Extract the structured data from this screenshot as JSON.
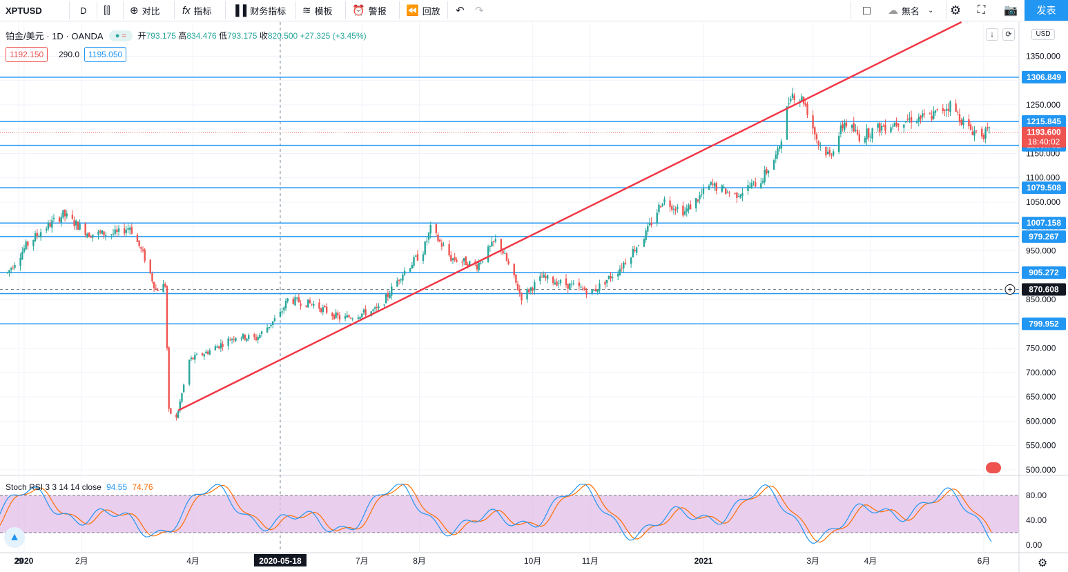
{
  "toolbar": {
    "symbol": "XPTUSD",
    "interval": "D",
    "compare": "对比",
    "indicators": "指标",
    "financials": "财务指标",
    "templates": "模板",
    "alert": "警报",
    "replay": "回放",
    "layout_name": "無名",
    "publish": "发表"
  },
  "legend": {
    "title": "铂金/美元 · 1D · OANDA",
    "open_label": "开",
    "open": "793.175",
    "high_label": "高",
    "high": "834.476",
    "low_label": "低",
    "low": "793.175",
    "close_label": "收",
    "close": "820.500",
    "change": "+27.325 (+3.45%)",
    "bid": "1192.150",
    "spread": "290.0",
    "ask": "1195.050"
  },
  "currency": "USD",
  "oscillator": {
    "name": "Stoch RSI 3 3 14 14 close",
    "k_value": "94.55",
    "d_value": "74.76",
    "ticks": [
      "80.00",
      "40.00",
      "0.00"
    ]
  },
  "chart_data": {
    "type": "candlestick",
    "symbol": "XPTUSD",
    "timeframe": "1D",
    "y_range": [
      490,
      1420
    ],
    "y_ticks": [
      1350,
      1300,
      1250,
      1200,
      1150,
      1100,
      1050,
      1000,
      950,
      900,
      850,
      800,
      750,
      700,
      650,
      600,
      550,
      500
    ],
    "y_tick_labels": [
      "1350.000",
      "1300.000",
      "1250.000",
      "1200.000",
      "1150.000",
      "1100.000",
      "1050.000",
      "1000.000",
      "950.000",
      "900.000",
      "850.000",
      "800.000",
      "750.000",
      "700.000",
      "650.000",
      "600.000",
      "550.000",
      "500.000"
    ],
    "x_labels": [
      {
        "label": "29",
        "date": "2019-12-29"
      },
      {
        "label": "2020",
        "date": "2020-01-01"
      },
      {
        "label": "2月",
        "date": "2020-02-01"
      },
      {
        "label": "4月",
        "date": "2020-04-01"
      },
      {
        "label": "2020-05-18",
        "date": "2020-05-18"
      },
      {
        "label": "7月",
        "date": "2020-07-01"
      },
      {
        "label": "8月",
        "date": "2020-08-01"
      },
      {
        "label": "10月",
        "date": "2020-10-01"
      },
      {
        "label": "11月",
        "date": "2020-11-01"
      },
      {
        "label": "2021",
        "date": "2021-01-01"
      },
      {
        "label": "3月",
        "date": "2021-03-01"
      },
      {
        "label": "4月",
        "date": "2021-04-01"
      },
      {
        "label": "6月",
        "date": "2021-06-01"
      }
    ],
    "crosshair_date": "2020-05-18",
    "horizontal_levels": [
      1306.849,
      1215.845,
      1166.731,
      1079.508,
      1007.158,
      979.267,
      905.272,
      870.608,
      799.952
    ],
    "cursor_price": "870.608",
    "current_price": "1193.600",
    "countdown": "18:40:02",
    "trendline": {
      "from": {
        "date": "2020-03-24",
        "price": 622
      },
      "to": {
        "date": "2021-05-20",
        "price": 1420
      }
    },
    "price_anchors": [
      {
        "date": "2019-12-23",
        "price": 905
      },
      {
        "date": "2020-01-02",
        "price": 960
      },
      {
        "date": "2020-01-10",
        "price": 990
      },
      {
        "date": "2020-01-22",
        "price": 1025
      },
      {
        "date": "2020-02-05",
        "price": 985
      },
      {
        "date": "2020-02-20",
        "price": 985
      },
      {
        "date": "2020-02-27",
        "price": 1000
      },
      {
        "date": "2020-03-06",
        "price": 935
      },
      {
        "date": "2020-03-12",
        "price": 870
      },
      {
        "date": "2020-03-17",
        "price": 880
      },
      {
        "date": "2020-03-19",
        "price": 620
      },
      {
        "date": "2020-03-23",
        "price": 605
      },
      {
        "date": "2020-03-30",
        "price": 725
      },
      {
        "date": "2020-04-10",
        "price": 745
      },
      {
        "date": "2020-04-24",
        "price": 775
      },
      {
        "date": "2020-05-05",
        "price": 770
      },
      {
        "date": "2020-05-18",
        "price": 820
      },
      {
        "date": "2020-05-22",
        "price": 850
      },
      {
        "date": "2020-06-05",
        "price": 840
      },
      {
        "date": "2020-06-20",
        "price": 810
      },
      {
        "date": "2020-07-10",
        "price": 830
      },
      {
        "date": "2020-07-22",
        "price": 900
      },
      {
        "date": "2020-08-03",
        "price": 950
      },
      {
        "date": "2020-08-07",
        "price": 995
      },
      {
        "date": "2020-08-18",
        "price": 935
      },
      {
        "date": "2020-09-01",
        "price": 920
      },
      {
        "date": "2020-09-12",
        "price": 975
      },
      {
        "date": "2020-09-25",
        "price": 855
      },
      {
        "date": "2020-10-06",
        "price": 895
      },
      {
        "date": "2020-10-20",
        "price": 880
      },
      {
        "date": "2020-11-02",
        "price": 865
      },
      {
        "date": "2020-11-16",
        "price": 910
      },
      {
        "date": "2020-12-01",
        "price": 985
      },
      {
        "date": "2020-12-10",
        "price": 1055
      },
      {
        "date": "2020-12-22",
        "price": 1030
      },
      {
        "date": "2021-01-05",
        "price": 1085
      },
      {
        "date": "2021-01-18",
        "price": 1065
      },
      {
        "date": "2021-02-01",
        "price": 1095
      },
      {
        "date": "2021-02-10",
        "price": 1150
      },
      {
        "date": "2021-02-17",
        "price": 1275
      },
      {
        "date": "2021-02-24",
        "price": 1260
      },
      {
        "date": "2021-03-04",
        "price": 1170
      },
      {
        "date": "2021-03-10",
        "price": 1145
      },
      {
        "date": "2021-03-18",
        "price": 1215
      },
      {
        "date": "2021-03-26",
        "price": 1185
      },
      {
        "date": "2021-04-07",
        "price": 1205
      },
      {
        "date": "2021-04-20",
        "price": 1220
      },
      {
        "date": "2021-05-03",
        "price": 1225
      },
      {
        "date": "2021-05-14",
        "price": 1250
      },
      {
        "date": "2021-05-24",
        "price": 1200
      },
      {
        "date": "2021-06-01",
        "price": 1190
      },
      {
        "date": "2021-06-04",
        "price": 1193.6
      }
    ],
    "stoch_rsi": {
      "k_last": 94.55,
      "d_last": 74.76,
      "upper_band": 80,
      "lower_band": 20
    }
  },
  "colors": {
    "up": "#26a69a",
    "down": "#ef5350",
    "level_line": "#2196f3",
    "trendline": "#f23645",
    "osc_k": "#2196f3",
    "osc_d": "#ff6d00",
    "osc_band": "#e1bee7",
    "accent": "#2196f3"
  }
}
